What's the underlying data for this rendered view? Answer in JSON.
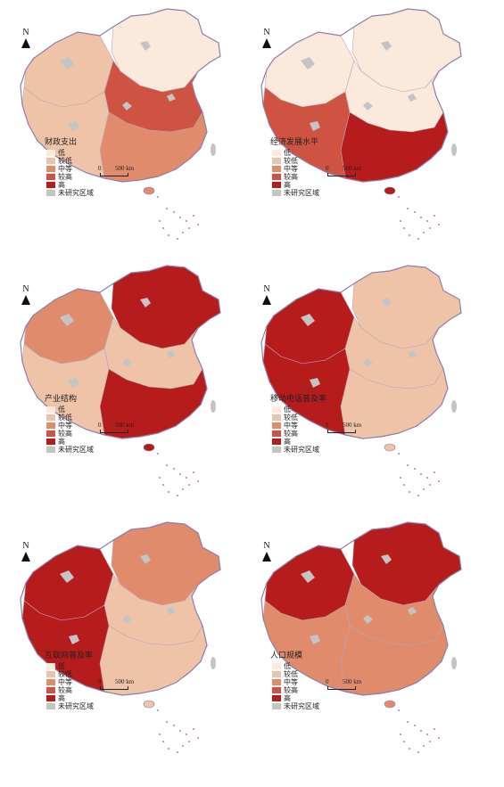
{
  "north_label": "N",
  "scale": {
    "zero": "0",
    "distance": "500 km"
  },
  "legend_classes": [
    {
      "label": "低",
      "color": "#fbe9dc"
    },
    {
      "label": "较低",
      "color": "#efc3a8"
    },
    {
      "label": "中等",
      "color": "#e08b6c"
    },
    {
      "label": "较高",
      "color": "#cf5343"
    },
    {
      "label": "高",
      "color": "#b71c1c"
    },
    {
      "label": "未研究区域",
      "color": "#c4c4c4"
    }
  ],
  "panels": [
    {
      "title": "财政支出"
    },
    {
      "title": "经济发展水平"
    },
    {
      "title": "产业结构"
    },
    {
      "title": "移动电话普及率"
    },
    {
      "title": "互联网普及率"
    },
    {
      "title": "人口规模"
    }
  ],
  "map_fill": {
    "west_levels": [
      1,
      0,
      2,
      4,
      4,
      4
    ],
    "north_levels": [
      0,
      0,
      4,
      1,
      2,
      4
    ],
    "central_levels": [
      3,
      0,
      1,
      1,
      1,
      2
    ],
    "south_levels": [
      2,
      4,
      4,
      1,
      1,
      2
    ],
    "tibet_levels": [
      1,
      3,
      1,
      4,
      4,
      2
    ]
  }
}
